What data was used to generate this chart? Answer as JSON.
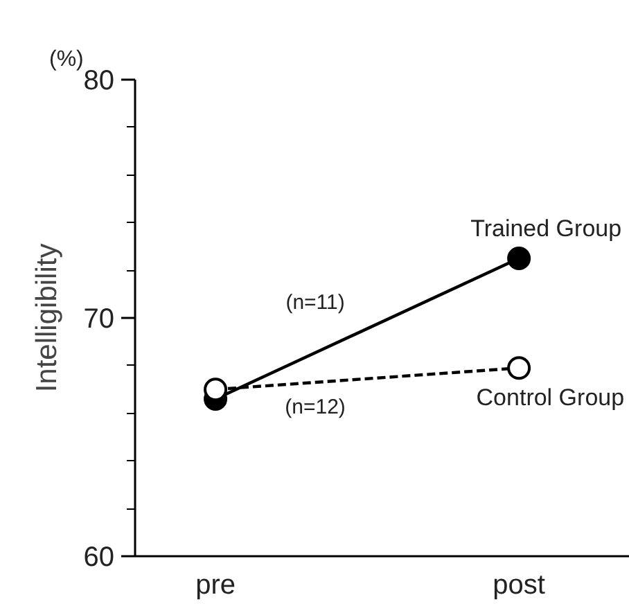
{
  "chart_data": {
    "type": "line",
    "ylabel": "Intelligibility",
    "categories": [
      "pre",
      "post"
    ],
    "series": [
      {
        "name": "Trained Group",
        "color": "#000000",
        "marker": "circle",
        "line_style": "solid",
        "values": [
          66.6,
          72.5
        ]
      },
      {
        "name": "Control Group",
        "color": "#000000",
        "marker": "circle_open",
        "line_style": "dashed",
        "values": [
          67.0,
          67.9
        ]
      }
    ],
    "annotations": [
      "(%)",
      "(n=11)",
      "(n=12)"
    ],
    "ylim": [
      60,
      80
    ],
    "yticks": [
      60,
      {
        "value": 62,
        "label": null
      },
      {
        "value": 64,
        "label": null
      },
      {
        "value": 66,
        "label": null
      },
      {
        "value": 68,
        "label": null
      },
      70,
      {
        "value": 72,
        "label": null
      },
      {
        "value": 74,
        "label": null
      },
      {
        "value": 76,
        "label": null
      },
      {
        "value": 78,
        "label": null
      },
      80
    ],
    "grid": false,
    "legend": false
  }
}
